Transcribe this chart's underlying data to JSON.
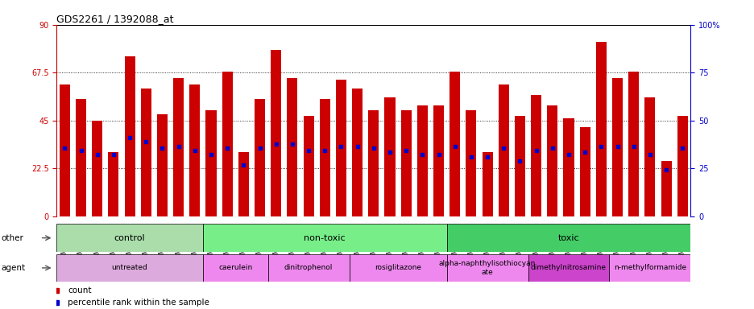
{
  "title": "GDS2261 / 1392088_at",
  "samples": [
    "GSM127079",
    "GSM127080",
    "GSM127081",
    "GSM127082",
    "GSM127083",
    "GSM127084",
    "GSM127085",
    "GSM127086",
    "GSM127087",
    "GSM127054",
    "GSM127055",
    "GSM127056",
    "GSM127057",
    "GSM127058",
    "GSM127064",
    "GSM127065",
    "GSM127066",
    "GSM127067",
    "GSM127068",
    "GSM127074",
    "GSM127075",
    "GSM127076",
    "GSM127077",
    "GSM127078",
    "GSM127049",
    "GSM127050",
    "GSM127051",
    "GSM127052",
    "GSM127053",
    "GSM127059",
    "GSM127060",
    "GSM127061",
    "GSM127062",
    "GSM127063",
    "GSM127069",
    "GSM127070",
    "GSM127071",
    "GSM127072",
    "GSM127073"
  ],
  "bar_heights": [
    62,
    55,
    45,
    30,
    75,
    60,
    48,
    65,
    62,
    50,
    68,
    30,
    55,
    78,
    65,
    47,
    55,
    64,
    60,
    50,
    56,
    50,
    52,
    52,
    68,
    50,
    30,
    62,
    47,
    57,
    52,
    46,
    42,
    82,
    65,
    68,
    56,
    26,
    47
  ],
  "blue_positions": [
    32,
    31,
    29,
    29,
    37,
    35,
    32,
    33,
    31,
    29,
    32,
    24,
    32,
    34,
    34,
    31,
    31,
    33,
    33,
    32,
    30,
    31,
    29,
    29,
    33,
    28,
    28,
    32,
    26,
    31,
    32,
    29,
    30,
    33,
    33,
    33,
    29,
    22,
    32
  ],
  "bar_color": "#cc0000",
  "blue_color": "#0000cc",
  "ylim_left": [
    0,
    90
  ],
  "ylim_right": [
    0,
    100
  ],
  "yticks_left": [
    0,
    22.5,
    45,
    67.5,
    90
  ],
  "yticks_right": [
    0,
    25,
    50,
    75,
    100
  ],
  "ytick_labels_left": [
    "0",
    "22.5",
    "45",
    "67.5",
    "90"
  ],
  "ytick_labels_right": [
    "0",
    "25",
    "50",
    "75",
    "100%"
  ],
  "grid_lines": [
    22.5,
    45,
    67.5
  ],
  "group_other": [
    {
      "label": "control",
      "start": 0,
      "end": 9,
      "color": "#aaddaa"
    },
    {
      "label": "non-toxic",
      "start": 9,
      "end": 24,
      "color": "#66dd88"
    },
    {
      "label": "toxic",
      "start": 24,
      "end": 39,
      "color": "#44cc66"
    }
  ],
  "group_agent": [
    {
      "label": "untreated",
      "start": 0,
      "end": 9,
      "color": "#ddaadd"
    },
    {
      "label": "caerulein",
      "start": 9,
      "end": 13,
      "color": "#ee88ee"
    },
    {
      "label": "dinitrophenol",
      "start": 13,
      "end": 18,
      "color": "#ee88ee"
    },
    {
      "label": "rosiglitazone",
      "start": 18,
      "end": 24,
      "color": "#ee88ee"
    },
    {
      "label": "alpha-naphthylisothiocyan\nate",
      "start": 24,
      "end": 29,
      "color": "#ee88ee"
    },
    {
      "label": "dimethylnitrosamine",
      "start": 29,
      "end": 34,
      "color": "#cc44cc"
    },
    {
      "label": "n-methylformamide",
      "start": 34,
      "end": 39,
      "color": "#ee88ee"
    }
  ],
  "legend_count_color": "#cc0000",
  "legend_blue_color": "#0000cc",
  "plot_bg": "#ffffff",
  "row_label_fontsize": 8,
  "bar_label_fontsize": 7,
  "tick_fontsize": 7,
  "title_fontsize": 9
}
